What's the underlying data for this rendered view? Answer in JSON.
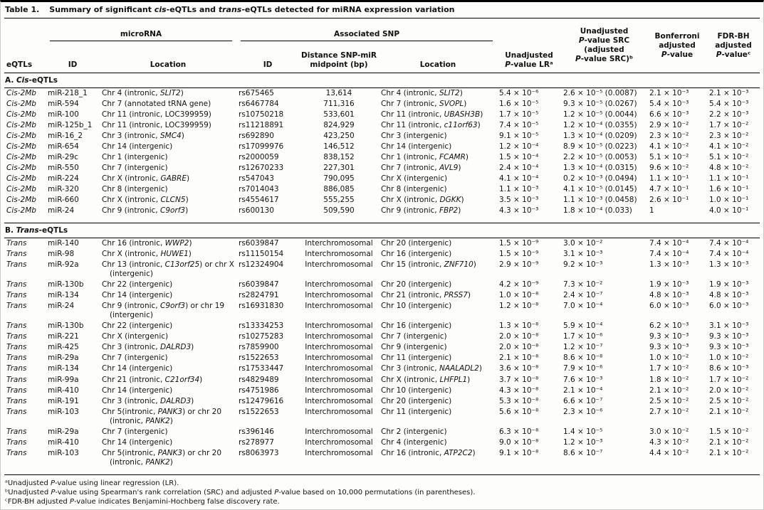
{
  "title": {
    "label": "Table 1.",
    "caption": "Summary of significant *cis*-eQTLs and *trans*-eQTLs detected for miRNA expression variation"
  },
  "header": {
    "group_mirna": "microRNA",
    "group_snp": "Associated SNP",
    "col_eqtls": "eQTLs",
    "col_mir_id": "ID",
    "col_mir_location": "Location",
    "col_snp_id": "ID",
    "col_distance": "Distance SNP-miR\nmidpoint (bp)",
    "col_snp_location": "Location",
    "col_p_lr": "Unadjusted\n*P*-value LRᵃ",
    "col_p_src": "Unadjusted\n*P*-value SRC\n(adjusted\n*P*-value SRC)ᵇ",
    "col_bonferroni": "Bonferroni\nadjusted\n*P*-value",
    "col_fdr": "FDR-BH\nadjusted\n*P*-valueᶜ"
  },
  "column_keys": [
    "eqtl-type",
    "mirna-id",
    "mirna-location",
    "snp-id",
    "distance",
    "snp-location",
    "p-lr",
    "p-src",
    "bonferroni",
    "fdr-bh"
  ],
  "sections": [
    {
      "heading": "A. *Cis*-eQTLs",
      "rows": [
        [
          "*Cis-2Mb*",
          "miR-218_1",
          "Chr 4 (intronic, *SLIT2*)",
          "rs675465",
          "13,614",
          "Chr 4 (intronic, *SLIT2*)",
          "5.4 × 10⁻⁶",
          "2.6 × 10⁻⁵ (0.0087)",
          "2.1 × 10⁻³",
          "2.1 × 10⁻³"
        ],
        [
          "*Cis-2Mb*",
          "miR-594",
          "Chr 7 (annotated tRNA gene)",
          "rs6467784",
          "711,316",
          "Chr 7 (intronic, *SVOPL*)",
          "1.6 × 10⁻⁵",
          "9.3 × 10⁻⁵ (0.0267)",
          "5.4 × 10⁻³",
          "5.4 × 10⁻³"
        ],
        [
          "*Cis-2Mb*",
          "miR-100",
          "Chr 11 (intronic, LOC399959)",
          "rs10750218",
          "533,601",
          "Chr 11 (intronic, *UBASH3B*)",
          "1.7 × 10⁻⁵",
          "1.2 × 10⁻⁵ (0.0044)",
          "6.6 × 10⁻³",
          "2.2 × 10⁻³"
        ],
        [
          "*Cis-2Mb*",
          "miR-125b_1",
          "Chr 11 (intronic, LOC399959)",
          "rs11218891",
          "824,929",
          "Chr 11 (intronic, *c11orf63*)",
          "7.4 × 10⁻⁵",
          "1.2 × 10⁻⁴ (0.0355)",
          "2.9 × 10⁻²",
          "1.7 × 10⁻²"
        ],
        [
          "*Cis-2Mb*",
          "miR-16_2",
          "Chr 3 (intronic, *SMC4*)",
          "rs692890",
          "423,250",
          "Chr 3 (intergenic)",
          "9.1 × 10⁻⁵",
          "1.3 × 10⁻⁴ (0.0209)",
          "2.3 × 10⁻²",
          "2.3 × 10⁻²"
        ],
        [
          "*Cis-2Mb*",
          "miR-654",
          "Chr 14 (intergenic)",
          "rs17099976",
          "146,512",
          "Chr 14 (intergenic)",
          "1.2 × 10⁻⁴",
          "8.9 × 10⁻⁵ (0.0223)",
          "4.1 × 10⁻²",
          "4.1 × 10⁻²"
        ],
        [
          "*Cis-2Mb*",
          "miR-29c",
          "Chr 1 (intergenic)",
          "rs2000059",
          "838,152",
          "Chr 1 (intronic, *FCAMR*)",
          "1.5 × 10⁻⁴",
          "2.2 × 10⁻⁵ (0.0053)",
          "5.1 × 10⁻²",
          "5.1 × 10⁻²"
        ],
        [
          "*Cis-2Mb*",
          "miR-550",
          "Chr 7 (intergenic)",
          "rs12670233",
          "227,301",
          "Chr 7 (intronic, *AVL9*)",
          "2.4 × 10⁻⁴",
          "1.3 × 10⁻⁴ (0.0315)",
          "9.6 × 10⁻²",
          "4.8 × 10⁻²"
        ],
        [
          "*Cis-2Mb*",
          "miR-224",
          "Chr X (intronic, *GABRE*)",
          "rs547043",
          "790,095",
          "Chr X (intergenic)",
          "4.1 × 10⁻⁴",
          "0.2 × 10⁻³ (0.0494)",
          "1.1 × 10⁻¹",
          "1.1 × 10⁻¹"
        ],
        [
          "*Cis-2Mb*",
          "miR-320",
          "Chr 8 (intergenic)",
          "rs7014043",
          "886,085",
          "Chr 8 (intergenic)",
          "1.1 × 10⁻³",
          "4.1 × 10⁻⁵ (0.0145)",
          "4.7 × 10⁻¹",
          "1.6 × 10⁻¹"
        ],
        [
          "*Cis-2Mb*",
          "miR-660",
          "Chr X (intronic, *CLCN5*)",
          "rs4554617",
          "555,255",
          "Chr X (intronic, *DGKK*)",
          "3.5 × 10⁻³",
          "1.1 × 10⁻³ (0.0458)",
          "2.6 × 10⁻¹",
          "1.0 × 10⁻¹"
        ],
        [
          "*Cis-2Mb*",
          "miR-24",
          "Chr 9 (intronic, *C9orf3*)",
          "rs600130",
          "509,590",
          "Chr 9 (intronic, *FBP2*)",
          "4.3 × 10⁻³",
          "1.8 × 10⁻⁴ (0.033)",
          "1",
          "4.0 × 10⁻¹"
        ]
      ]
    },
    {
      "heading": "B. *Trans*-eQTLs",
      "rows": [
        [
          "*Trans*",
          "miR-140",
          "Chr 16 (intronic, *WWP2*)",
          "rs6039847",
          "Interchromosomal",
          "Chr 20 (intergenic)",
          "1.5 × 10⁻⁹",
          "3.0 × 10⁻²",
          "7.4 × 10⁻⁴",
          "7.4 × 10⁻⁴"
        ],
        [
          "*Trans*",
          "miR-98",
          "Chr X (intronic, *HUWE1*)",
          "rs11150154",
          "Interchromosomal",
          "Chr 16 (intergenic)",
          "1.5 × 10⁻⁹",
          "3.1 × 10⁻³",
          "7.4 × 10⁻⁴",
          "7.4 × 10⁻⁴"
        ],
        [
          "*Trans*",
          "miR-92a",
          "Chr 13 (intronic, *C13orf25*) or chr X (intergenic)",
          "rs12324904",
          "Interchromosomal",
          "Chr 15 (intronic, *ZNF710*)",
          "2.9 × 10⁻⁹",
          "9.2 × 10⁻³",
          "1.3 × 10⁻³",
          "1.3 × 10⁻³"
        ],
        [
          "*Trans*",
          "miR-130b",
          "Chr 22 (intergenic)",
          "rs6039847",
          "Interchromosomal",
          "Chr 20 (intergenic)",
          "4.2 × 10⁻⁹",
          "7.3 × 10⁻²",
          "1.9 × 10⁻³",
          "1.9 × 10⁻³"
        ],
        [
          "*Trans*",
          "miR-134",
          "Chr 14 (intergenic)",
          "rs2824791",
          "Interchromosomal",
          "Chr 21 (intronic, *PRSS7*)",
          "1.0 × 10⁻⁸",
          "2.4 × 10⁻⁷",
          "4.8 × 10⁻³",
          "4.8 × 10⁻³"
        ],
        [
          "*Trans*",
          "miR-24",
          "Chr 9 (intronic, *C9orf3*) or chr 19 (intergenic)",
          "rs16931830",
          "Interchromosomal",
          "Chr 10 (intergenic)",
          "1.2 × 10⁻⁸",
          "7.0 × 10⁻⁴",
          "6.0 × 10⁻³",
          "6.0 × 10⁻³"
        ],
        [
          "*Trans*",
          "miR-130b",
          "Chr 22 (intergenic)",
          "rs13334253",
          "Interchromosomal",
          "Chr 16 (intergenic)",
          "1.3 × 10⁻⁸",
          "5.9 × 10⁻⁴",
          "6.2 × 10⁻³",
          "3.1 × 10⁻³"
        ],
        [
          "*Trans*",
          "miR-221",
          "Chr X (intergenic)",
          "rs10275283",
          "Interchromosomal",
          "Chr 7 (intergenic)",
          "2.0 × 10⁻⁸",
          "1.7 × 10⁻⁶",
          "9.3 × 10⁻³",
          "9.3 × 10⁻³"
        ],
        [
          "*Trans*",
          "miR-425",
          "Chr 3 (intronic, *DALRD3*)",
          "rs7859900",
          "Interchromosomal",
          "Chr 9 (intergenic)",
          "2.0 × 10⁻⁸",
          "1.2 × 10⁻⁷",
          "9.3 × 10⁻³",
          "9.3 × 10⁻³"
        ],
        [
          "*Trans*",
          "miR-29a",
          "Chr 7 (intergenic)",
          "rs1522653",
          "Interchromosomal",
          "Chr 11 (intergenic)",
          "2.1 × 10⁻⁸",
          "8.6 × 10⁻⁸",
          "1.0 × 10⁻²",
          "1.0 × 10⁻²"
        ],
        [
          "*Trans*",
          "miR-134",
          "Chr 14 (intergenic)",
          "rs17533447",
          "Interchromosomal",
          "Chr 3 (intronic, *NAALADL2*)",
          "3.6 × 10⁻⁸",
          "7.9 × 10⁻⁶",
          "1.7 × 10⁻²",
          "8.6 × 10⁻³"
        ],
        [
          "*Trans*",
          "miR-99a",
          "Chr 21 (intronic, *C21orf34*)",
          "rs4829489",
          "Interchromosomal",
          "Chr X (intronic, *LHFPL1*)",
          "3.7 × 10⁻⁸",
          "7.6 × 10⁻³",
          "1.8 × 10⁻²",
          "1.7 × 10⁻²"
        ],
        [
          "*Trans*",
          "miR-410",
          "Chr 14 (intergenic)",
          "rs4751986",
          "Interchromosomal",
          "Chr 10 (intergenic)",
          "4.3 × 10⁻⁸",
          "2.1 × 10⁻⁴",
          "2.1 × 10⁻²",
          "2.0 × 10⁻²"
        ],
        [
          "*Trans*",
          "miR-191",
          "Chr 3 (intronic, *DALRD3*)",
          "rs12479616",
          "Interchromosomal",
          "Chr 20 (intergenic)",
          "5.3 × 10⁻⁸",
          "6.6 × 10⁻⁷",
          "2.5 × 10⁻²",
          "2.5 × 10⁻²"
        ],
        [
          "*Trans*",
          "miR-103",
          "Chr 5(intronic, *PANK3*) or chr 20 (intronic, *PANK2*)",
          "rs1522653",
          "Interchromosomal",
          "Chr 11 (intergenic)",
          "5.6 × 10⁻⁸",
          "2.3 × 10⁻⁶",
          "2.7 × 10⁻²",
          "2.1 × 10⁻²"
        ],
        [
          "*Trans*",
          "miR-29a",
          "Chr 7 (intergenic)",
          "rs396146",
          "Interchromosomal",
          "Chr 2 (intergenic)",
          "6.3 × 10⁻⁸",
          "1.4 × 10⁻⁵",
          "3.0 × 10⁻²",
          "1.5 × 10⁻²"
        ],
        [
          "*Trans*",
          "miR-410",
          "Chr 14 (intergenic)",
          "rs278977",
          "Interchromosomal",
          "Chr 4 (intergenic)",
          "9.0 × 10⁻⁸",
          "1.2 × 10⁻³",
          "4.3 × 10⁻²",
          "2.1 × 10⁻²"
        ],
        [
          "*Trans*",
          "miR-103",
          "Chr 5(intronic, *PANK3*) or chr 20 (intronic, *PANK2*)",
          "rs8063973",
          "Interchromosomal",
          "Chr 16 (intronic, *ATP2C2*)",
          "9.1 × 10⁻⁸",
          "8.6 × 10⁻⁷",
          "4.4 × 10⁻²",
          "2.1 × 10⁻²"
        ]
      ]
    }
  ],
  "footnotes": [
    "ᵃUnadjusted *P*-value using linear regression (LR).",
    "ᵇUnadjusted *P*-value using Spearman's rank correlation (SRC) and adjusted *P*-value based on 10,000 permutations (in parentheses).",
    "ᶜFDR-BH adjusted *P*-value indicates Benjamini-Hochberg false discovery rate."
  ]
}
